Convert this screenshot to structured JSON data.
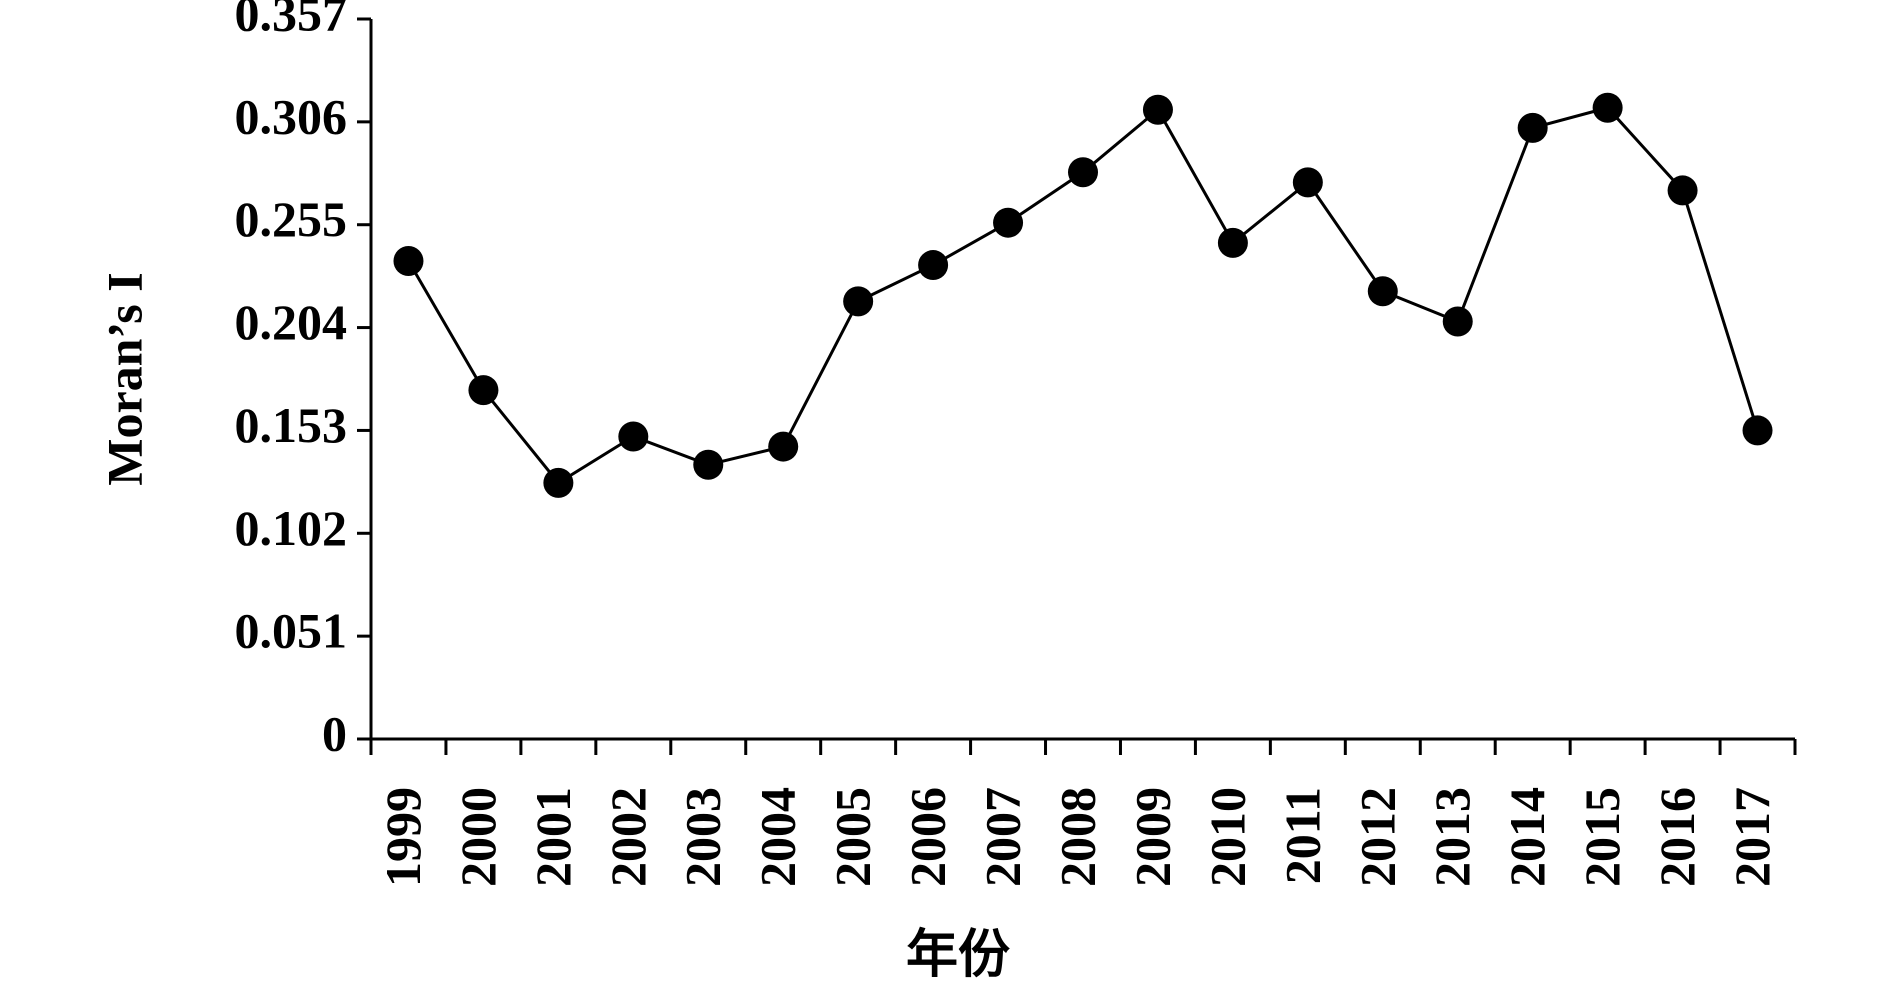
{
  "chart_data": {
    "type": "line",
    "x_label": "年份",
    "y_label": "Moran’s I",
    "categories": [
      "1999",
      "2000",
      "2001",
      "2002",
      "2003",
      "2004",
      "2005",
      "2006",
      "2007",
      "2008",
      "2009",
      "2010",
      "2011",
      "2012",
      "2013",
      "2014",
      "2015",
      "2016",
      "2017"
    ],
    "series": [
      {
        "name": "Moran’s I",
        "color": "#000000",
        "values": [
          0.237,
          0.173,
          0.127,
          0.15,
          0.136,
          0.145,
          0.217,
          0.235,
          0.256,
          0.281,
          0.312,
          0.246,
          0.276,
          0.222,
          0.207,
          0.303,
          0.313,
          0.272,
          0.153
        ]
      }
    ],
    "ylim": [
      0,
      0.357
    ],
    "yticks": [
      0,
      0.051,
      0.102,
      0.153,
      0.204,
      0.255,
      0.306,
      0.357
    ]
  }
}
